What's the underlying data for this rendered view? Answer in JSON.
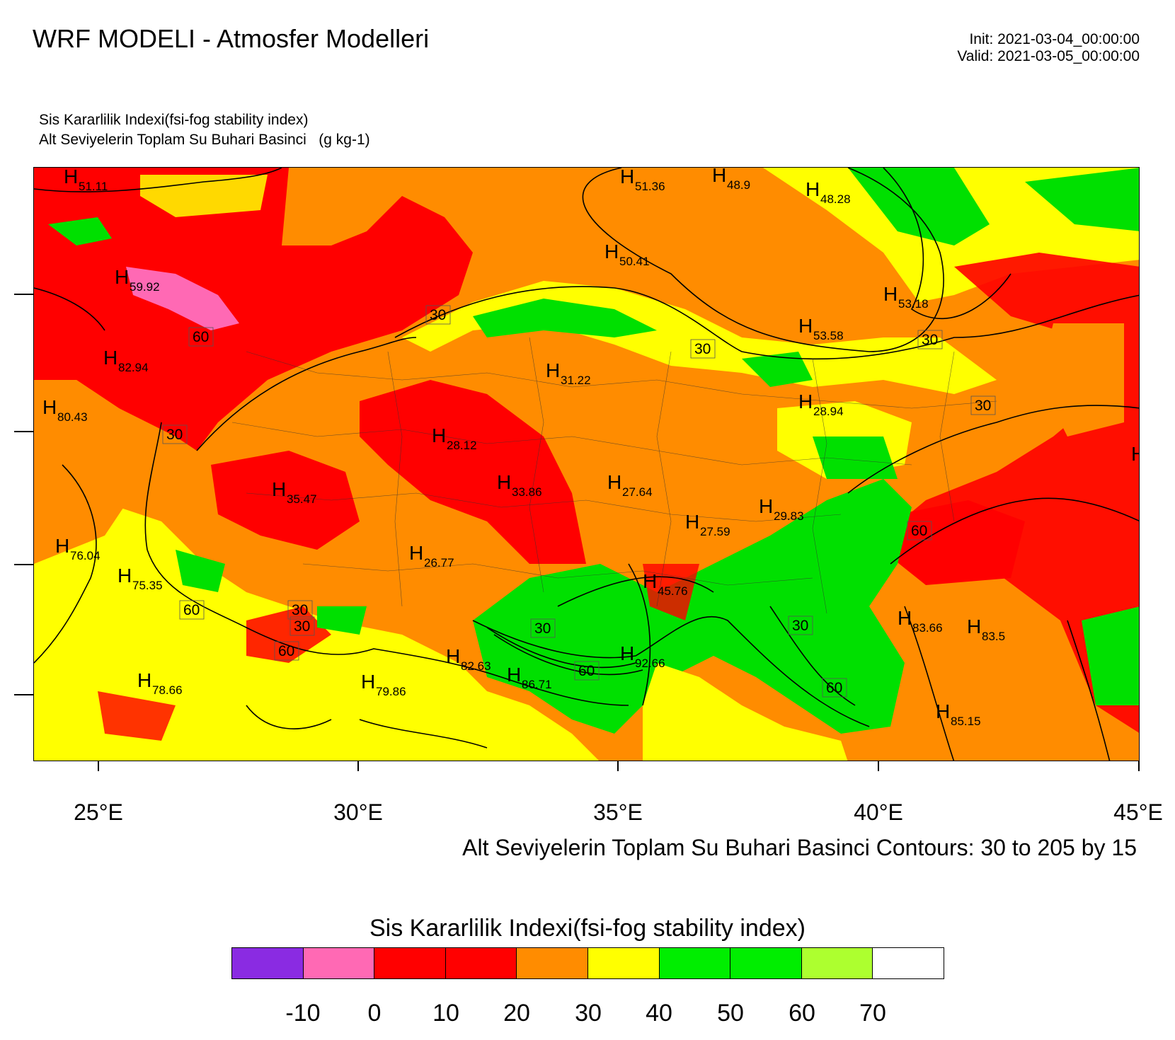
{
  "header": {
    "title": "WRF MODELI - Atmosfer Modelleri",
    "init": "Init: 2021-03-04_00:00:00",
    "valid": "Valid: 2021-03-05_00:00:00",
    "subtitle1": "Sis Kararlilik Indexi(fsi-fog stability index)",
    "subtitle2": "Alt Seviyelerin Toplam Su Buhari Basinci   (g kg-1)"
  },
  "map": {
    "lon_labels": [
      "25°E",
      "30°E",
      "35°E",
      "40°E",
      "45°E"
    ],
    "contour_info": "Alt Seviyelerin Toplam Su Buhari Basinci Contours: 30 to 205 by 15",
    "high_markers": [
      {
        "letter": "H",
        "value": "51.11"
      },
      {
        "letter": "H",
        "value": "51.36"
      },
      {
        "letter": "H",
        "value": "48.9"
      },
      {
        "letter": "H",
        "value": "48.28"
      },
      {
        "letter": "H",
        "value": "50.41"
      },
      {
        "letter": "H",
        "value": "59.92"
      },
      {
        "letter": "H",
        "value": "53.18"
      },
      {
        "letter": "H",
        "value": "53.58"
      },
      {
        "letter": "H",
        "value": "82.94"
      },
      {
        "letter": "H",
        "value": "31.22"
      },
      {
        "letter": "H",
        "value": "80.43"
      },
      {
        "letter": "H",
        "value": "28.94"
      },
      {
        "letter": "H",
        "value": "28.12"
      },
      {
        "letter": "H",
        "value": "33.86"
      },
      {
        "letter": "H",
        "value": "27.64"
      },
      {
        "letter": "H",
        "value": "35.47"
      },
      {
        "letter": "H",
        "value": "29.83"
      },
      {
        "letter": "H",
        "value": "27.59"
      },
      {
        "letter": "H",
        "value": "76.04"
      },
      {
        "letter": "H",
        "value": "26.77"
      },
      {
        "letter": "H",
        "value": "75.35"
      },
      {
        "letter": "H",
        "value": "45.76"
      },
      {
        "letter": "H",
        "value": "83.66"
      },
      {
        "letter": "H",
        "value": "83.5"
      },
      {
        "letter": "H",
        "value": "82.63"
      },
      {
        "letter": "H",
        "value": "92.66"
      },
      {
        "letter": "H",
        "value": "78.66"
      },
      {
        "letter": "H",
        "value": "79.86"
      },
      {
        "letter": "H",
        "value": "86.71"
      },
      {
        "letter": "H",
        "value": "85.15"
      },
      {
        "letter": "H",
        "value": ""
      }
    ],
    "contour_labels": [
      "30",
      "30",
      "30",
      "30",
      "30",
      "30",
      "30",
      "30",
      "30",
      "60",
      "60",
      "60",
      "60",
      "60",
      "60",
      "60"
    ]
  },
  "legend": {
    "title": "Sis Kararlilik Indexi(fsi-fog stability index)",
    "colors": [
      "#8a2be2",
      "#ff69b4",
      "#ff0000",
      "#ff0000",
      "#ff8c00",
      "#ffff00",
      "#00ee00",
      "#00ff00",
      "#00ee00",
      "#adff2f",
      "#ffffff"
    ],
    "tick_labels": [
      "-10",
      "0",
      "10",
      "20",
      "30",
      "40",
      "50",
      "60",
      "70"
    ]
  }
}
